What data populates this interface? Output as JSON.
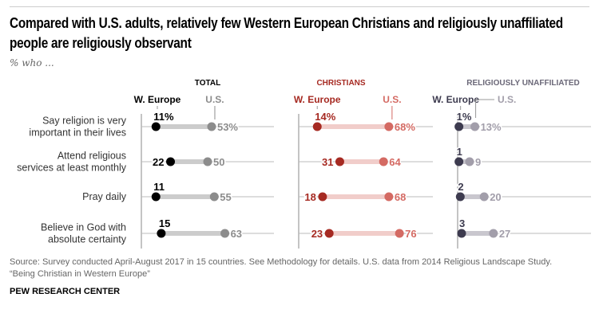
{
  "title": "Compared with U.S. adults, relatively few Western European Christians and religiously unaffiliated people are religiously observant",
  "subtitle": "% who ...",
  "source": "Source: Survey conducted April-August 2017 in 15 countries. See Methodology for details. U.S. data from 2014 Religious Landscape Study.",
  "report": "“Being Christian in Western Europe”",
  "brand": "PEW RESEARCH CENTER",
  "chart_data": {
    "type": "dot",
    "categories": [
      "Say religion is very important in their lives",
      "Attend religious services at least monthly",
      "Pray daily",
      "Believe in God with absolute certainty"
    ],
    "xlim": [
      0,
      100
    ],
    "unit": "%",
    "panels": [
      {
        "title": "TOTAL",
        "colors": {
          "title": "#000000",
          "europe": "#000000",
          "us": "#8c8c8c",
          "bar": "#cccccc"
        },
        "series": [
          {
            "name": "W. Europe",
            "values": [
              11,
              22,
              11,
              15
            ]
          },
          {
            "name": "U.S.",
            "values": [
              53,
              50,
              55,
              63
            ]
          }
        ]
      },
      {
        "title": "CHRISTIANS",
        "colors": {
          "title": "#a62a22",
          "europe": "#a62a22",
          "us": "#d46a63",
          "bar": "#f1cdca"
        },
        "series": [
          {
            "name": "W. Europe",
            "values": [
              14,
              31,
              18,
              23
            ]
          },
          {
            "name": "U.S.",
            "values": [
              68,
              64,
              68,
              76
            ]
          }
        ]
      },
      {
        "title": "RELIGIOUSLY UNAFFILIATED",
        "colors": {
          "title": "#6b6878",
          "europe": "#3d3b4f",
          "us": "#a29eaa",
          "bar": "#c9c7ce"
        },
        "series": [
          {
            "name": "W. Europe",
            "values": [
              1,
              1,
              2,
              3
            ]
          },
          {
            "name": "U.S.",
            "values": [
              13,
              9,
              20,
              27
            ]
          }
        ]
      }
    ]
  }
}
